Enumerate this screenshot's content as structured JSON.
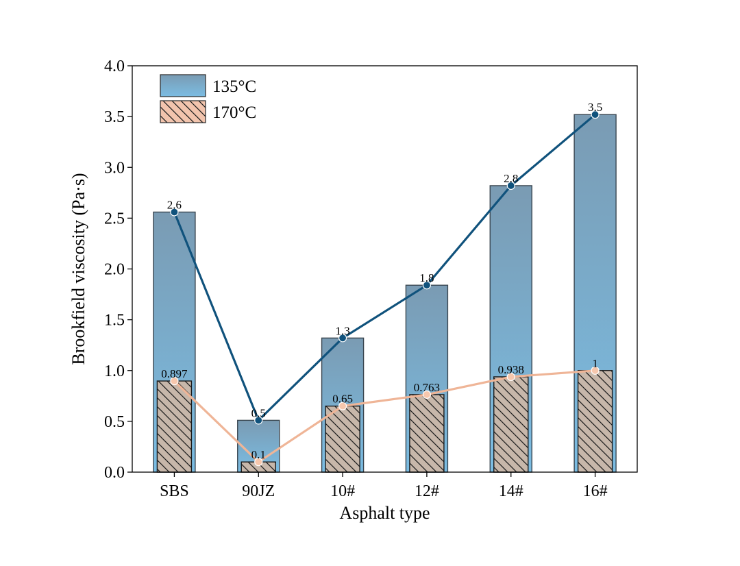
{
  "chart_data": {
    "type": "bar",
    "title": "",
    "xlabel": "Asphalt type",
    "ylabel": "Brookfield viscosity (Pa·s)",
    "ylim": [
      0,
      4.0
    ],
    "yticks": [
      "0.0",
      "0.5",
      "1.0",
      "1.5",
      "2.0",
      "2.5",
      "3.0",
      "3.5",
      "4.0"
    ],
    "categories": [
      "SBS",
      "90JZ",
      "10#",
      "12#",
      "14#",
      "16#"
    ],
    "series": [
      {
        "name": "135°C",
        "values": [
          2.56,
          0.51,
          1.32,
          1.84,
          2.82,
          3.52
        ],
        "labels": [
          "2.6",
          "0.5",
          "1.3",
          "1.8",
          "2.8",
          "3.5"
        ],
        "bar_top_color": "#7a9bb3",
        "bar_bottom_color": "#7bbde3",
        "line_color": "#10527c",
        "marker_color": "#10527c"
      },
      {
        "name": "170°C",
        "values": [
          0.897,
          0.1,
          0.65,
          0.763,
          0.938,
          1.0
        ],
        "labels": [
          "0.897",
          "0.1",
          "0.65",
          "0.763",
          "0.938",
          "1"
        ],
        "bar_color": "#c7b7aa",
        "line_color": "#efb597",
        "marker_color": "#f6c7ad",
        "hatch": "diagonal"
      }
    ],
    "legend": {
      "position": "top-left",
      "entries": [
        "135°C",
        "170°C"
      ]
    },
    "grid": false
  }
}
